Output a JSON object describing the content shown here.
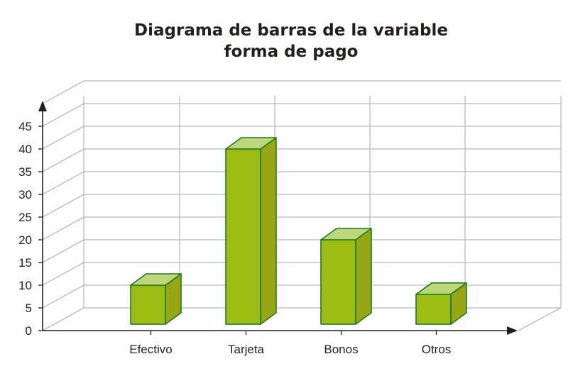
{
  "chart_data": {
    "type": "bar",
    "title_lines": [
      "Diagrama de barras de la variable",
      "forma de pago"
    ],
    "categories": [
      "Efectivo",
      "Tarjeta",
      "Bonos",
      "Otros"
    ],
    "values": [
      10,
      40,
      20,
      8
    ],
    "ylim": [
      0,
      45
    ],
    "yticks": [
      0,
      5,
      10,
      15,
      20,
      25,
      30,
      35,
      40,
      45
    ],
    "grid": true,
    "style": "3d",
    "colors": {
      "bar_front": "#9bbd14",
      "bar_side": "#96a614",
      "bar_top": "#bcd67a",
      "bar_edge": "#1e7a25",
      "grid": "#b9b9b9",
      "axis": "#231f1a"
    }
  }
}
